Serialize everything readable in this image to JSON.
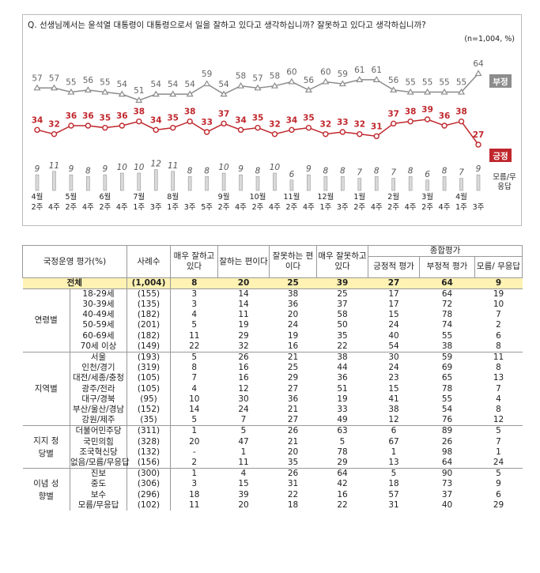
{
  "chart_data": {
    "type": "line",
    "title": "Q. 선생님께서는 윤석열 대통령이 대통령으로서 일을 잘하고 있다고 생각하십니까? 잘못하고 있다고 생각하십니까?",
    "subtitle": "(n=1,004, %)",
    "categories": [
      "4월 2주",
      "4주",
      "5월 2주",
      "4주",
      "6월 2주",
      "4주",
      "7월 1주",
      "3주",
      "8월 1주",
      "3주",
      "5주",
      "9월 2주",
      "4주",
      "10월 2주",
      "4주",
      "11월 2주",
      "4주",
      "12월 1주",
      "3주",
      "1월 2주",
      "4주",
      "2월 2주",
      "4주",
      "3월 2주",
      "4주",
      "4월 1주",
      "3주"
    ],
    "series": [
      {
        "name": "부정",
        "color": "#8c8c8c",
        "marker": "triangle",
        "values": [
          57,
          57,
          55,
          56,
          55,
          54,
          51,
          54,
          54,
          54,
          59,
          54,
          58,
          57,
          58,
          60,
          56,
          60,
          59,
          61,
          61,
          56,
          55,
          55,
          55,
          55,
          64
        ]
      },
      {
        "name": "긍정",
        "color": "#c0272d",
        "marker": "circle",
        "values": [
          34,
          32,
          36,
          36,
          35,
          36,
          38,
          34,
          35,
          38,
          33,
          37,
          34,
          35,
          32,
          34,
          35,
          32,
          33,
          32,
          31,
          37,
          38,
          39,
          36,
          38,
          27
        ]
      },
      {
        "name": "모름/무응답",
        "color": "#d9d9d9",
        "type": "bar",
        "values": [
          9,
          11,
          9,
          8,
          9,
          10,
          10,
          12,
          11,
          8,
          8,
          10,
          9,
          8,
          10,
          6,
          9,
          8,
          8,
          7,
          8,
          7,
          8,
          6,
          8,
          7,
          9
        ]
      }
    ]
  },
  "table": {
    "header_top": [
      "국정운영 평가(%)",
      "사례수",
      "매우 잘하고 있다",
      "잘하는 편이다",
      "잘못하는 편이다",
      "매우 잘못하고 있다",
      "종합평가"
    ],
    "header_sub": [
      "긍정적 평가",
      "부정적 평가",
      "모름/ 무응답"
    ],
    "total": {
      "label": "전체",
      "n": "(1,004)",
      "values": [
        8,
        20,
        25,
        39,
        27,
        64,
        9
      ]
    },
    "groups": [
      {
        "name": "연령별",
        "rows": [
          {
            "label": "18-29세",
            "n": "(155)",
            "values": [
              3,
              14,
              38,
              25,
              17,
              64,
              19
            ]
          },
          {
            "label": "30-39세",
            "n": "(135)",
            "values": [
              3,
              14,
              36,
              37,
              17,
              72,
              10
            ]
          },
          {
            "label": "40-49세",
            "n": "(182)",
            "values": [
              4,
              11,
              20,
              58,
              15,
              78,
              7
            ]
          },
          {
            "label": "50-59세",
            "n": "(201)",
            "values": [
              5,
              19,
              24,
              50,
              24,
              74,
              2
            ]
          },
          {
            "label": "60-69세",
            "n": "(182)",
            "values": [
              11,
              29,
              19,
              35,
              40,
              55,
              6
            ]
          },
          {
            "label": "70세 이상",
            "n": "(149)",
            "values": [
              22,
              32,
              16,
              22,
              54,
              38,
              8
            ]
          }
        ]
      },
      {
        "name": "지역별",
        "rows": [
          {
            "label": "서울",
            "n": "(193)",
            "values": [
              5,
              26,
              21,
              38,
              30,
              59,
              11
            ]
          },
          {
            "label": "인천/경기",
            "n": "(319)",
            "values": [
              8,
              16,
              25,
              44,
              24,
              69,
              8
            ]
          },
          {
            "label": "대전/세종/충청",
            "n": "(105)",
            "values": [
              7,
              16,
              29,
              36,
              23,
              65,
              13
            ]
          },
          {
            "label": "광주/전라",
            "n": "(105)",
            "values": [
              4,
              12,
              27,
              51,
              15,
              78,
              7
            ]
          },
          {
            "label": "대구/경북",
            "n": "(95)",
            "values": [
              10,
              30,
              36,
              19,
              41,
              55,
              4
            ]
          },
          {
            "label": "부산/울산/경남",
            "n": "(152)",
            "values": [
              14,
              24,
              21,
              33,
              38,
              54,
              8
            ]
          },
          {
            "label": "강원/제주",
            "n": "(35)",
            "values": [
              5,
              7,
              27,
              49,
              12,
              76,
              12
            ]
          }
        ]
      },
      {
        "name": "지지 정당별",
        "rows": [
          {
            "label": "더불어민주당",
            "n": "(311)",
            "values": [
              1,
              5,
              26,
              63,
              6,
              89,
              5
            ]
          },
          {
            "label": "국민의힘",
            "n": "(328)",
            "values": [
              20,
              47,
              21,
              5,
              67,
              26,
              7
            ]
          },
          {
            "label": "조국혁신당",
            "n": "(132)",
            "values": [
              "-",
              1,
              20,
              78,
              1,
              98,
              1
            ]
          },
          {
            "label": "없음/모름/무응답",
            "n": "(156)",
            "values": [
              2,
              11,
              35,
              29,
              13,
              64,
              24
            ]
          }
        ]
      },
      {
        "name": "이념 성향별",
        "rows": [
          {
            "label": "진보",
            "n": "(300)",
            "values": [
              1,
              4,
              26,
              64,
              5,
              90,
              5
            ]
          },
          {
            "label": "중도",
            "n": "(306)",
            "values": [
              3,
              15,
              31,
              42,
              18,
              73,
              9
            ]
          },
          {
            "label": "보수",
            "n": "(296)",
            "values": [
              18,
              39,
              22,
              16,
              57,
              37,
              6
            ]
          },
          {
            "label": "모름/무응답",
            "n": "(102)",
            "values": [
              11,
              20,
              18,
              22,
              31,
              40,
              29
            ]
          }
        ]
      }
    ]
  }
}
